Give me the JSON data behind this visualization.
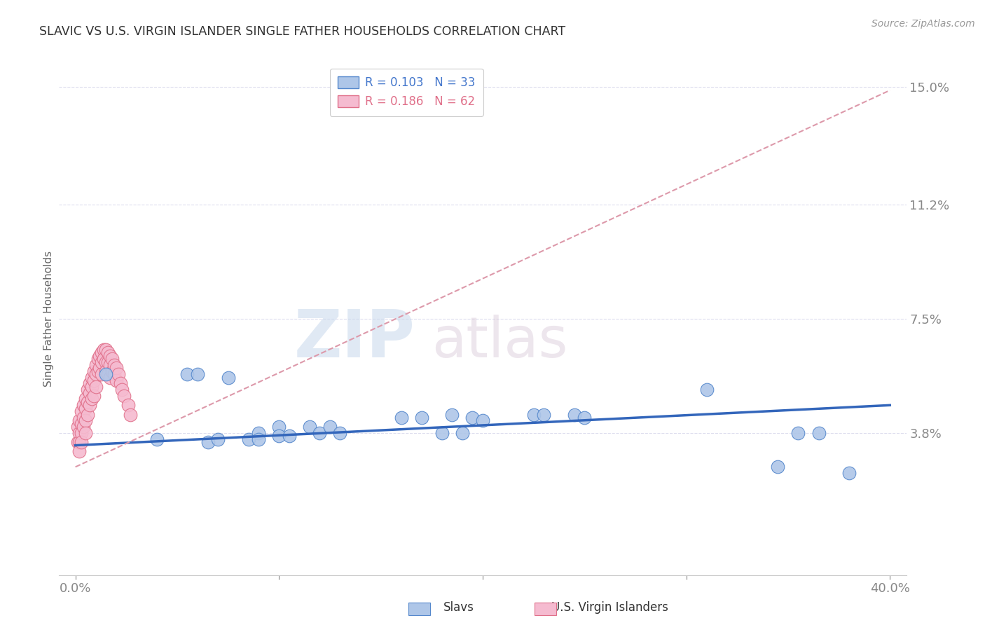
{
  "title": "SLAVIC VS U.S. VIRGIN ISLANDER SINGLE FATHER HOUSEHOLDS CORRELATION CHART",
  "source": "Source: ZipAtlas.com",
  "ylabel": "Single Father Households",
  "xlim": [
    0.0,
    0.4
  ],
  "ylim": [
    0.0,
    0.15
  ],
  "yticks": [
    0.038,
    0.075,
    0.112,
    0.15
  ],
  "ytick_labels": [
    "3.8%",
    "7.5%",
    "11.2%",
    "15.0%"
  ],
  "slavs_R": 0.103,
  "slavs_N": 33,
  "vi_R": 0.186,
  "vi_N": 62,
  "slavs_color": "#aec6e8",
  "slavs_edge_color": "#5588cc",
  "vi_color": "#f5bbd0",
  "vi_edge_color": "#e0708a",
  "slavs_line_color": "#3366bb",
  "vi_line_color": "#dd99aa",
  "background_color": "#ffffff",
  "grid_color": "#ddddee",
  "axis_label_color": "#4477cc",
  "title_color": "#333333",
  "slavs_line_x0": 0.0,
  "slavs_line_y0": 0.034,
  "slavs_line_x1": 0.4,
  "slavs_line_y1": 0.047,
  "vi_line_x0": 0.0,
  "vi_line_y0": 0.027,
  "vi_line_x1": 0.4,
  "vi_line_y1": 0.149,
  "slavs_x": [
    0.015,
    0.04,
    0.055,
    0.06,
    0.065,
    0.07,
    0.075,
    0.085,
    0.09,
    0.09,
    0.1,
    0.1,
    0.105,
    0.115,
    0.12,
    0.125,
    0.13,
    0.16,
    0.17,
    0.18,
    0.185,
    0.19,
    0.195,
    0.2,
    0.225,
    0.23,
    0.245,
    0.25,
    0.31,
    0.345,
    0.355,
    0.365,
    0.38
  ],
  "slavs_y": [
    0.057,
    0.036,
    0.057,
    0.057,
    0.035,
    0.036,
    0.056,
    0.036,
    0.038,
    0.036,
    0.04,
    0.037,
    0.037,
    0.04,
    0.038,
    0.04,
    0.038,
    0.043,
    0.043,
    0.038,
    0.044,
    0.038,
    0.043,
    0.042,
    0.044,
    0.044,
    0.044,
    0.043,
    0.052,
    0.027,
    0.038,
    0.038,
    0.025
  ],
  "vi_x": [
    0.001,
    0.001,
    0.002,
    0.002,
    0.002,
    0.002,
    0.003,
    0.003,
    0.003,
    0.003,
    0.004,
    0.004,
    0.004,
    0.005,
    0.005,
    0.005,
    0.005,
    0.006,
    0.006,
    0.006,
    0.007,
    0.007,
    0.007,
    0.008,
    0.008,
    0.008,
    0.009,
    0.009,
    0.009,
    0.01,
    0.01,
    0.01,
    0.011,
    0.011,
    0.012,
    0.012,
    0.013,
    0.013,
    0.013,
    0.014,
    0.014,
    0.015,
    0.015,
    0.015,
    0.016,
    0.016,
    0.016,
    0.017,
    0.017,
    0.017,
    0.018,
    0.018,
    0.019,
    0.019,
    0.02,
    0.02,
    0.021,
    0.022,
    0.023,
    0.024,
    0.026,
    0.027
  ],
  "vi_y": [
    0.04,
    0.035,
    0.042,
    0.038,
    0.035,
    0.032,
    0.045,
    0.041,
    0.038,
    0.035,
    0.047,
    0.043,
    0.04,
    0.049,
    0.046,
    0.042,
    0.038,
    0.052,
    0.048,
    0.044,
    0.054,
    0.051,
    0.047,
    0.056,
    0.053,
    0.049,
    0.058,
    0.055,
    0.05,
    0.06,
    0.057,
    0.053,
    0.062,
    0.058,
    0.063,
    0.059,
    0.064,
    0.061,
    0.057,
    0.065,
    0.062,
    0.065,
    0.061,
    0.058,
    0.064,
    0.061,
    0.057,
    0.063,
    0.06,
    0.056,
    0.062,
    0.058,
    0.06,
    0.057,
    0.059,
    0.055,
    0.057,
    0.054,
    0.052,
    0.05,
    0.047,
    0.044
  ],
  "legend_slavs_label": "Slavs",
  "legend_vi_label": "U.S. Virgin Islanders"
}
